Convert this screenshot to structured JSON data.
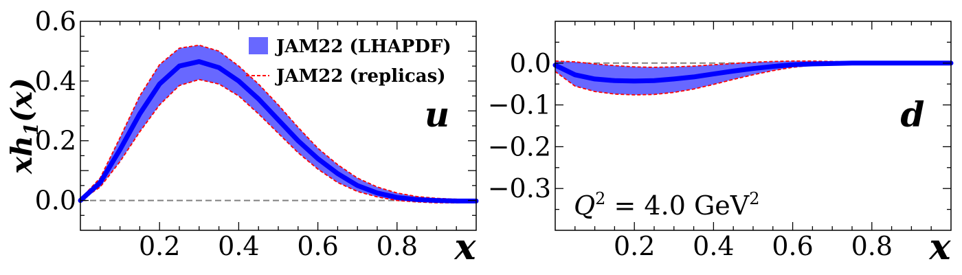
{
  "chart_data": [
    {
      "type": "line",
      "panel_label": "u",
      "xlabel": "x",
      "ylabel_main": "xh",
      "ylabel_sub": "1",
      "ylabel_tail": "(x)",
      "xlim": [
        0.0,
        1.0
      ],
      "ylim": [
        -0.1,
        0.6
      ],
      "x_ticks": [
        0.2,
        0.4,
        0.6,
        0.8
      ],
      "x_tick_labels": [
        "0.2",
        "0.4",
        "0.6",
        "0.8"
      ],
      "y_ticks": [
        0.0,
        0.2,
        0.4,
        0.6
      ],
      "y_tick_labels": [
        "0.0",
        "0.2",
        "0.4",
        "0.6"
      ],
      "zero_line": true,
      "legend": {
        "placement": "top-right",
        "entries": [
          {
            "label": "JAM22 (LHAPDF)",
            "marker": "band",
            "color": "#5b5bff"
          },
          {
            "label": "JAM22 (replicas)",
            "marker": "dashed-line",
            "color": "#ff0000"
          }
        ]
      },
      "series": [
        {
          "name": "JAM22 (LHAPDF)",
          "color": "#0000ff",
          "band_color": "#5b5bff",
          "x": [
            0.0,
            0.05,
            0.1,
            0.15,
            0.2,
            0.25,
            0.3,
            0.35,
            0.4,
            0.45,
            0.5,
            0.55,
            0.6,
            0.65,
            0.7,
            0.75,
            0.8,
            0.85,
            0.9,
            0.95,
            1.0
          ],
          "y": [
            0.0,
            0.06,
            0.17,
            0.29,
            0.39,
            0.45,
            0.465,
            0.445,
            0.4,
            0.34,
            0.27,
            0.2,
            0.14,
            0.09,
            0.05,
            0.025,
            0.01,
            0.003,
            0.0,
            -0.002,
            -0.002
          ],
          "lower": [
            0.0,
            0.045,
            0.13,
            0.23,
            0.32,
            0.385,
            0.405,
            0.39,
            0.35,
            0.29,
            0.225,
            0.16,
            0.105,
            0.06,
            0.03,
            0.012,
            0.0,
            -0.005,
            -0.008,
            -0.008,
            -0.005
          ],
          "upper": [
            0.005,
            0.075,
            0.21,
            0.35,
            0.455,
            0.51,
            0.52,
            0.5,
            0.45,
            0.39,
            0.32,
            0.245,
            0.175,
            0.12,
            0.075,
            0.045,
            0.025,
            0.013,
            0.007,
            0.004,
            0.002
          ]
        }
      ]
    },
    {
      "type": "line",
      "panel_label": "d",
      "xlabel": "x",
      "xlim": [
        0.0,
        1.0
      ],
      "ylim": [
        -0.4,
        0.1
      ],
      "x_ticks": [
        0.2,
        0.4,
        0.6,
        0.8
      ],
      "x_tick_labels": [
        "0.2",
        "0.4",
        "0.6",
        "0.8"
      ],
      "y_ticks": [
        0.0,
        -0.1,
        -0.2,
        -0.3
      ],
      "y_tick_labels": [
        "0.0",
        "−0.1",
        "−0.2",
        "−0.3"
      ],
      "zero_line": true,
      "annotation": {
        "prefix": "Q",
        "prefix_sup": "2",
        "text": " = 4.0 GeV",
        "sup": "2"
      },
      "series": [
        {
          "name": "JAM22 (LHAPDF)",
          "color": "#0000ff",
          "band_color": "#5b5bff",
          "x": [
            0.0,
            0.05,
            0.1,
            0.15,
            0.2,
            0.25,
            0.3,
            0.35,
            0.4,
            0.45,
            0.5,
            0.55,
            0.6,
            0.65,
            0.7,
            0.75,
            0.8,
            0.85,
            0.9,
            0.95,
            1.0
          ],
          "y": [
            -0.005,
            -0.028,
            -0.038,
            -0.042,
            -0.043,
            -0.042,
            -0.038,
            -0.033,
            -0.026,
            -0.019,
            -0.013,
            -0.008,
            -0.004,
            -0.002,
            -0.001,
            0.0,
            0.0,
            0.0,
            0.0,
            0.0,
            0.0
          ],
          "lower": [
            -0.02,
            -0.055,
            -0.068,
            -0.074,
            -0.076,
            -0.075,
            -0.07,
            -0.062,
            -0.051,
            -0.039,
            -0.028,
            -0.018,
            -0.01,
            -0.005,
            -0.002,
            -0.001,
            0.0,
            0.0,
            0.0,
            0.0,
            0.0
          ],
          "upper": [
            0.005,
            0.003,
            -0.002,
            -0.006,
            -0.009,
            -0.01,
            -0.009,
            -0.007,
            -0.004,
            -0.001,
            0.002,
            0.004,
            0.005,
            0.005,
            0.004,
            0.003,
            0.002,
            0.001,
            0.001,
            0.0,
            0.0
          ]
        }
      ]
    }
  ]
}
